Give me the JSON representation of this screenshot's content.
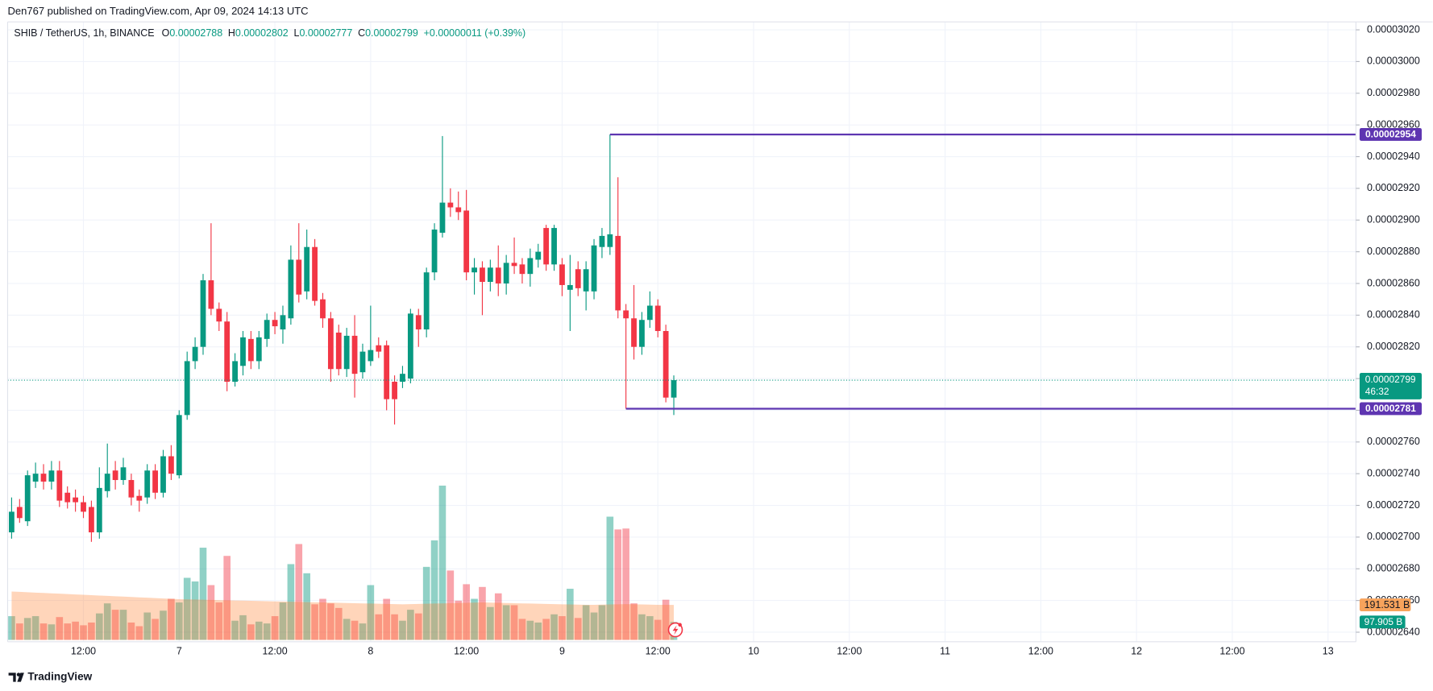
{
  "publisher": "Den767 published on TradingView.com, Apr 09, 2024 14:13 UTC",
  "footer": "TradingView",
  "chart_data": {
    "type": "candlestick",
    "legend": {
      "symbol": "SHIB / TetherUS, 1h, BINANCE",
      "o": "O",
      "h": "H",
      "l": "L",
      "c": "C",
      "change": "+0.00000011 (+0.39%)",
      "color": "#089981"
    },
    "categories": [
      null,
      null,
      null,
      null,
      null,
      null,
      null,
      null,
      null,
      "12:00",
      null,
      null,
      null,
      null,
      null,
      null,
      null,
      null,
      null,
      null,
      null,
      "7",
      null,
      null,
      null,
      null,
      null,
      null,
      null,
      null,
      null,
      null,
      null,
      "12:00",
      null,
      null,
      null,
      null,
      null,
      null,
      null,
      null,
      null,
      null,
      null,
      "8",
      null,
      null,
      null,
      null,
      null,
      null,
      null,
      null,
      null,
      null,
      null,
      "12:00",
      null,
      null,
      null,
      null,
      null,
      null,
      null,
      null,
      null,
      null,
      null,
      "9",
      null,
      null,
      null,
      null,
      null,
      null,
      null,
      null,
      null,
      null,
      null,
      "12:00",
      null,
      null,
      null,
      null,
      null,
      null,
      null,
      null,
      null,
      null,
      null,
      "10",
      null,
      null,
      null,
      null,
      null,
      null,
      null,
      null,
      null,
      null,
      null,
      "12:00",
      null,
      null,
      null,
      null,
      null,
      null,
      null,
      null,
      null,
      null,
      null,
      "11",
      null,
      null,
      null,
      null,
      null,
      null,
      null,
      null,
      null,
      null,
      null,
      "12:00",
      null,
      null,
      null,
      null,
      null,
      null,
      null,
      null,
      null,
      null,
      null,
      "12",
      null,
      null,
      null,
      null,
      null,
      null,
      null,
      null,
      null,
      null,
      null,
      "12:00",
      null,
      null,
      null,
      null,
      null,
      null,
      null,
      null,
      null,
      null,
      null,
      "13",
      null,
      null,
      null
    ],
    "open": [
      2.703e-05,
      2.719e-05,
      2.71e-05,
      2.735e-05,
      2.74e-05,
      2.735e-05,
      2.742e-05,
      2.728e-05,
      2.725e-05,
      2.722e-05,
      2.719e-05,
      2.703e-05,
      2.729e-05,
      2.742e-05,
      2.736e-05,
      2.736e-05,
      2.726e-05,
      2.725e-05,
      2.742e-05,
      2.728e-05,
      2.751e-05,
      2.739e-05,
      2.777e-05,
      2.811e-05,
      2.82e-05,
      2.862e-05,
      2.844e-05,
      2.836e-05,
      2.798e-05,
      2.808e-05,
      2.825e-05,
      2.811e-05,
      2.825e-05,
      2.837e-05,
      2.831e-05,
      2.838e-05,
      2.875e-05,
      2.855e-05,
      2.883e-05,
      2.85e-05,
      2.838e-05,
      2.829e-05,
      2.806e-05,
      2.827e-05,
      2.804e-05,
      2.811e-05,
      2.821e-05,
      2.821e-05,
      2.798e-05,
      2.798e-05,
      2.8e-05,
      2.84e-05,
      2.831e-05,
      2.867e-05,
      2.892e-05,
      2.911e-05,
      2.908e-05,
      2.906e-05,
      2.867e-05,
      2.87e-05,
      2.861e-05,
      2.87e-05,
      2.86e-05,
      2.873e-05,
      2.872e-05,
      2.866e-05,
      2.875e-05,
      2.895e-05,
      2.872e-05,
      2.872e-05,
      2.856e-05,
      2.869e-05,
      2.855e-05,
      2.855e-05,
      2.883e-05,
      2.883e-05,
      2.89e-05,
      2.843e-05,
      2.838e-05,
      2.82e-05,
      2.837e-05,
      2.846e-05,
      2.83e-05,
      2.788e-05,
      null,
      null,
      null,
      null,
      null,
      null,
      null,
      null,
      null,
      null,
      null,
      null,
      null,
      null,
      null,
      null,
      null,
      null,
      null,
      null,
      null,
      null,
      null,
      null,
      null,
      null,
      null,
      null,
      null,
      null,
      null,
      null,
      null,
      null,
      null,
      null,
      null,
      null,
      null,
      null,
      null,
      null,
      null,
      null,
      null,
      null,
      null,
      null,
      null,
      null,
      null,
      null,
      null,
      null,
      null,
      null,
      null,
      null,
      null,
      null,
      null,
      null,
      null,
      null,
      null,
      null,
      null,
      null,
      null,
      null,
      null,
      null,
      null,
      null,
      null,
      null,
      null,
      null,
      null,
      null,
      null,
      null,
      null,
      null,
      null
    ],
    "high": [
      2.725e-05,
      2.724e-05,
      2.742e-05,
      2.747e-05,
      2.746e-05,
      2.748e-05,
      2.748e-05,
      2.732e-05,
      2.73e-05,
      2.726e-05,
      2.723e-05,
      2.744e-05,
      2.759e-05,
      2.748e-05,
      2.75e-05,
      2.74e-05,
      2.73e-05,
      2.746e-05,
      2.746e-05,
      2.755e-05,
      2.758e-05,
      2.78e-05,
      2.817e-05,
      2.826e-05,
      2.866e-05,
      2.898e-05,
      2.848e-05,
      2.842e-05,
      2.816e-05,
      2.83e-05,
      2.83e-05,
      2.83e-05,
      2.841e-05,
      2.842e-05,
      2.846e-05,
      2.884e-05,
      2.898e-05,
      2.894e-05,
      2.888e-05,
      2.854e-05,
      2.842e-05,
      2.834e-05,
      2.832e-05,
      2.84e-05,
      2.822e-05,
      2.846e-05,
      2.826e-05,
      2.824e-05,
      2.802e-05,
      2.808e-05,
      2.844e-05,
      2.844e-05,
      2.87e-05,
      2.898e-05,
      2.953e-05,
      2.92e-05,
      2.918e-05,
      2.919e-05,
      2.876e-05,
      2.874e-05,
      2.875e-05,
      2.884e-05,
      2.878e-05,
      2.889e-05,
      2.876e-05,
      2.882e-05,
      2.885e-05,
      2.897e-05,
      2.897e-05,
      2.876e-05,
      2.878e-05,
      2.874e-05,
      2.874e-05,
      2.888e-05,
      2.895e-05,
      2.954e-05,
      2.927e-05,
      2.847e-05,
      2.859e-05,
      2.842e-05,
      2.855e-05,
      2.85e-05,
      2.834e-05,
      2.802e-05,
      null,
      null,
      null,
      null,
      null,
      null,
      null,
      null,
      null,
      null,
      null,
      null,
      null,
      null,
      null,
      null,
      null,
      null,
      null,
      null,
      null,
      null,
      null,
      null,
      null,
      null,
      null,
      null,
      null,
      null,
      null,
      null,
      null,
      null,
      null,
      null,
      null,
      null,
      null,
      null,
      null,
      null,
      null,
      null,
      null,
      null,
      null,
      null,
      null,
      null,
      null,
      null,
      null,
      null,
      null,
      null,
      null,
      null,
      null,
      null,
      null,
      null,
      null,
      null,
      null,
      null,
      null,
      null,
      null,
      null,
      null,
      null,
      null,
      null,
      null,
      null,
      null,
      null,
      null,
      null,
      null,
      null,
      null,
      null,
      null
    ],
    "low": [
      2.699e-05,
      2.709e-05,
      2.707e-05,
      2.731e-05,
      2.73e-05,
      2.73e-05,
      2.719e-05,
      2.718e-05,
      2.716e-05,
      2.712e-05,
      2.697e-05,
      2.699e-05,
      2.725e-05,
      2.73e-05,
      2.733e-05,
      2.72e-05,
      2.716e-05,
      2.721e-05,
      2.724e-05,
      2.725e-05,
      2.736e-05,
      2.737e-05,
      2.774e-05,
      2.806e-05,
      2.815e-05,
      2.84e-05,
      2.83e-05,
      2.792e-05,
      2.795e-05,
      2.802e-05,
      2.806e-05,
      2.806e-05,
      2.82e-05,
      2.828e-05,
      2.822e-05,
      2.834e-05,
      2.848e-05,
      2.85e-05,
      2.846e-05,
      2.832e-05,
      2.798e-05,
      2.802e-05,
      2.801e-05,
      2.788e-05,
      2.8e-05,
      2.808e-05,
      2.813e-05,
      2.78e-05,
      2.771e-05,
      2.794e-05,
      2.797e-05,
      2.82e-05,
      2.826e-05,
      2.862e-05,
      2.889e-05,
      2.902e-05,
      2.9e-05,
      2.862e-05,
      2.853e-05,
      2.84e-05,
      2.855e-05,
      2.852e-05,
      2.853e-05,
      2.866e-05,
      2.86e-05,
      2.858e-05,
      2.87e-05,
      2.868e-05,
      2.868e-05,
      2.852e-05,
      2.83e-05,
      2.852e-05,
      2.843e-05,
      2.85e-05,
      2.876e-05,
      2.878e-05,
      2.838e-05,
      2.781e-05,
      2.812e-05,
      2.815e-05,
      2.832e-05,
      2.826e-05,
      2.785e-05,
      2.777e-05,
      null,
      null,
      null,
      null,
      null,
      null,
      null,
      null,
      null,
      null,
      null,
      null,
      null,
      null,
      null,
      null,
      null,
      null,
      null,
      null,
      null,
      null,
      null,
      null,
      null,
      null,
      null,
      null,
      null,
      null,
      null,
      null,
      null,
      null,
      null,
      null,
      null,
      null,
      null,
      null,
      null,
      null,
      null,
      null,
      null,
      null,
      null,
      null,
      null,
      null,
      null,
      null,
      null,
      null,
      null,
      null,
      null,
      null,
      null,
      null,
      null,
      null,
      null,
      null,
      null,
      null,
      null,
      null,
      null,
      null,
      null,
      null,
      null,
      null,
      null,
      null,
      null,
      null,
      null,
      null,
      null,
      null,
      null,
      null,
      null
    ],
    "close": [
      2.716e-05,
      2.712e-05,
      2.739e-05,
      2.74e-05,
      2.735e-05,
      2.742e-05,
      2.723e-05,
      2.722e-05,
      2.722e-05,
      2.716e-05,
      2.703e-05,
      2.731e-05,
      2.74e-05,
      2.736e-05,
      2.744e-05,
      2.725e-05,
      2.723e-05,
      2.742e-05,
      2.728e-05,
      2.751e-05,
      2.74e-05,
      2.777e-05,
      2.811e-05,
      2.82e-05,
      2.862e-05,
      2.844e-05,
      2.836e-05,
      2.798e-05,
      2.811e-05,
      2.826e-05,
      2.811e-05,
      2.826e-05,
      2.837e-05,
      2.833e-05,
      2.84e-05,
      2.875e-05,
      2.853e-05,
      2.883e-05,
      2.849e-05,
      2.838e-05,
      2.806e-05,
      2.806e-05,
      2.827e-05,
      2.803e-05,
      2.817e-05,
      2.818e-05,
      2.817e-05,
      2.787e-05,
      2.787e-05,
      2.803e-05,
      2.841e-05,
      2.831e-05,
      2.867e-05,
      2.894e-05,
      2.911e-05,
      2.908e-05,
      2.905e-05,
      2.867e-05,
      2.87e-05,
      2.861e-05,
      2.87e-05,
      2.86e-05,
      2.873e-05,
      2.871e-05,
      2.866e-05,
      2.876e-05,
      2.88e-05,
      2.872e-05,
      2.895e-05,
      2.859e-05,
      2.859e-05,
      2.857e-05,
      2.869e-05,
      2.884e-05,
      2.89e-05,
      2.891e-05,
      2.843e-05,
      2.838e-05,
      2.82e-05,
      2.837e-05,
      2.846e-05,
      2.83e-05,
      2.788e-05,
      2.799e-05,
      null,
      null,
      null,
      null,
      null,
      null,
      null,
      null,
      null,
      null,
      null,
      null,
      null,
      null,
      null,
      null,
      null,
      null,
      null,
      null,
      null,
      null,
      null,
      null,
      null,
      null,
      null,
      null,
      null,
      null,
      null,
      null,
      null,
      null,
      null,
      null,
      null,
      null,
      null,
      null,
      null,
      null,
      null,
      null,
      null,
      null,
      null,
      null,
      null,
      null,
      null,
      null,
      null,
      null,
      null,
      null,
      null,
      null,
      null,
      null,
      null,
      null,
      null,
      null,
      null,
      null,
      null,
      null,
      null,
      null,
      null,
      null,
      null,
      null,
      null,
      null,
      null,
      null,
      null,
      null,
      null,
      null,
      null,
      null,
      null
    ],
    "volume": [
      130,
      90,
      120,
      130,
      90,
      85,
      125,
      90,
      100,
      80,
      95,
      145,
      200,
      165,
      165,
      95,
      75,
      150,
      115,
      160,
      225,
      205,
      340,
      320,
      505,
      300,
      205,
      460,
      105,
      135,
      85,
      100,
      90,
      130,
      205,
      415,
      525,
      365,
      195,
      225,
      200,
      175,
      115,
      105,
      90,
      300,
      140,
      225,
      140,
      105,
      165,
      145,
      400,
      545,
      845,
      380,
      215,
      305,
      225,
      290,
      180,
      255,
      190,
      190,
      115,
      105,
      95,
      115,
      140,
      130,
      280,
      120,
      190,
      150,
      190,
      675,
      605,
      610,
      200,
      140,
      130,
      110,
      220,
      97.905,
      null,
      null,
      null,
      null,
      null,
      null,
      null,
      null,
      null,
      null,
      null,
      null,
      null,
      null,
      null,
      null,
      null,
      null,
      null,
      null,
      null,
      null,
      null,
      null,
      null,
      null,
      null,
      null,
      null,
      null,
      null,
      null,
      null,
      null,
      null,
      null,
      null,
      null,
      null,
      null,
      null,
      null,
      null,
      null,
      null,
      null,
      null,
      null,
      null,
      null,
      null,
      null,
      null,
      null,
      null,
      null,
      null,
      null,
      null,
      null,
      null,
      null,
      null,
      null,
      null,
      null,
      null,
      null,
      null,
      null,
      null,
      null,
      null,
      null,
      null,
      null,
      null,
      null,
      null,
      null,
      null,
      null,
      null,
      null,
      null
    ],
    "volume_ma": [
      265,
      263,
      261,
      259,
      257,
      255,
      253,
      251,
      249,
      247,
      245,
      243,
      241,
      239,
      237,
      235,
      233,
      231,
      229,
      227,
      225,
      223,
      222,
      221,
      220,
      219,
      218,
      217,
      216,
      215,
      214,
      213,
      212,
      211,
      210,
      209,
      208,
      207,
      206,
      205,
      204,
      203,
      202,
      201,
      200,
      199,
      198,
      197,
      196,
      195,
      196,
      197,
      198,
      199,
      200,
      201,
      202,
      203,
      204,
      205,
      204,
      203,
      202,
      201,
      200,
      199,
      198,
      197,
      196,
      195,
      194,
      193,
      192,
      192,
      193,
      194,
      195,
      196,
      195,
      194,
      193,
      192,
      192,
      191.531,
      null,
      null,
      null,
      null,
      null,
      null,
      null,
      null,
      null,
      null,
      null,
      null,
      null,
      null,
      null,
      null,
      null,
      null,
      null,
      null,
      null,
      null,
      null,
      null,
      null,
      null,
      null,
      null,
      null,
      null,
      null,
      null,
      null,
      null,
      null,
      null,
      null,
      null,
      null,
      null,
      null,
      null,
      null,
      null,
      null,
      null,
      null,
      null,
      null,
      null,
      null,
      null,
      null,
      null,
      null,
      null,
      null,
      null,
      null,
      null,
      null,
      null,
      null,
      null,
      null,
      null,
      null,
      null,
      null,
      null,
      null,
      null,
      null,
      null,
      null,
      null,
      null,
      null,
      null,
      null,
      null,
      null,
      null,
      null,
      null
    ],
    "volume_label": "97.905 B",
    "volume_ma_label": "191.531 B",
    "countdown": "46:32",
    "up_color": "#089981",
    "down_color": "#f23645",
    "volume_up_color": "rgba(8,153,129,0.45)",
    "volume_down_color": "rgba(242,54,69,0.45)",
    "volume_ma_color": "rgba(255,125,40,0.32)",
    "volume_ma_label_color": "#f7a35c",
    "levels": [
      {
        "value": 2.954e-05,
        "color": "#5e35b1"
      },
      {
        "value": 2.781e-05,
        "color": "#5e35b1"
      }
    ],
    "ylim": [
      2.634e-05,
      3.025e-05
    ],
    "yticks": [
      {
        "value": 2.64e-05,
        "label": "0.00002640"
      },
      {
        "value": 2.66e-05,
        "label": "0.00002660"
      },
      {
        "value": 2.68e-05,
        "label": "0.00002680"
      },
      {
        "value": 2.7e-05,
        "label": "0.00002700"
      },
      {
        "value": 2.72e-05,
        "label": "0.00002720"
      },
      {
        "value": 2.74e-05,
        "label": "0.00002740"
      },
      {
        "value": 2.76e-05,
        "label": "0.00002760"
      },
      {
        "value": 2.78e-05,
        "label": "0.00002780"
      },
      {
        "value": 2.8e-05,
        "label": "0.00002800"
      },
      {
        "value": 2.82e-05,
        "label": "0.00002820"
      },
      {
        "value": 2.84e-05,
        "label": "0.00002840"
      },
      {
        "value": 2.86e-05,
        "label": "0.00002860"
      },
      {
        "value": 2.88e-05,
        "label": "0.00002880"
      },
      {
        "value": 2.9e-05,
        "label": "0.00002900"
      },
      {
        "value": 2.92e-05,
        "label": "0.00002920"
      },
      {
        "value": 2.94e-05,
        "label": "0.00002940"
      },
      {
        "value": 2.96e-05,
        "label": "0.00002960"
      },
      {
        "value": 2.98e-05,
        "label": "0.00002980"
      },
      {
        "value": 3e-05,
        "label": "0.00003000"
      },
      {
        "value": 3.02e-05,
        "label": "0.00003020"
      }
    ],
    "grid": true,
    "grid_color": "#f0f3fa"
  }
}
